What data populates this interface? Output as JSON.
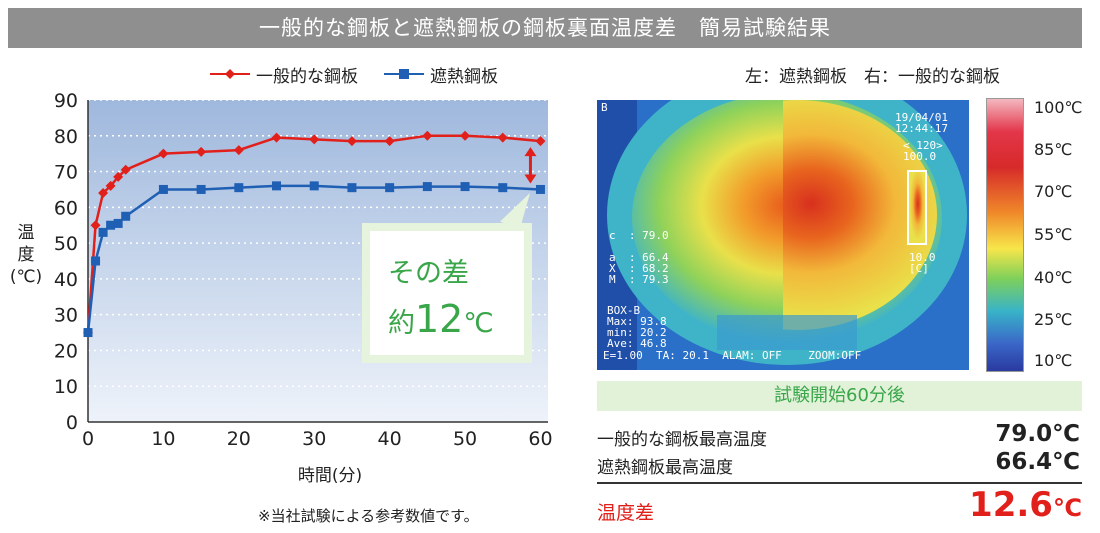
{
  "banner": {
    "title": "一般的な鋼板と遮熱鋼板の鋼板裏面温度差　簡易試験結果"
  },
  "colors": {
    "general": "#e2201b",
    "heat": "#1f5fb4",
    "accent_green": "#3aa64a",
    "plot_bg_top": "#9fb8dd"
  },
  "chart_data": {
    "type": "line",
    "xlabel": "時間(分)",
    "ylabel": "温度(℃)",
    "ylabel_lines": [
      "温",
      "度",
      "(℃)"
    ],
    "xlim": [
      0,
      61
    ],
    "ylim": [
      0,
      90
    ],
    "xticks": [
      0,
      10,
      20,
      30,
      40,
      50,
      60
    ],
    "yticks": [
      0,
      10,
      20,
      30,
      40,
      50,
      60,
      70,
      80,
      90
    ],
    "grid": "horizontal dotted",
    "legend_position": "top",
    "series": [
      {
        "name": "一般的な鋼板",
        "color": "#e2201b",
        "marker": "diamond",
        "x": [
          0,
          1,
          2,
          3,
          4,
          5,
          10,
          15,
          20,
          25,
          30,
          35,
          40,
          45,
          50,
          55,
          60
        ],
        "y": [
          25,
          55,
          64,
          66,
          68.5,
          70.5,
          75,
          75.5,
          76,
          79.5,
          79,
          78.5,
          78.5,
          80,
          80,
          79.5,
          78.5
        ]
      },
      {
        "name": "遮熱鋼板",
        "color": "#1f5fb4",
        "marker": "square",
        "x": [
          0,
          1,
          2,
          3,
          4,
          5,
          10,
          15,
          20,
          25,
          30,
          35,
          40,
          45,
          50,
          55,
          60
        ],
        "y": [
          25,
          45,
          53,
          55,
          55.5,
          57.5,
          65,
          65,
          65.5,
          66,
          66,
          65.5,
          65.5,
          65.8,
          65.8,
          65.5,
          65
        ]
      }
    ],
    "annotation": {
      "line1": "その差",
      "line2_prefix": "約",
      "line2_value": "12",
      "line2_unit": "℃"
    }
  },
  "note": "※当社試験による参考数値です。",
  "thermo": {
    "caption": "左：遮熱鋼板　右：一般的な鋼板",
    "scale_labels": [
      "100℃",
      "85℃",
      "70℃",
      "55℃",
      "40℃",
      "25℃",
      "10℃"
    ],
    "overlay": {
      "corner": "B",
      "datetime": "19/04/01\n12:44:17",
      "range": "< 120>\n100.0",
      "c_line": "c  : 79.0",
      "stats": "a  : 66.4\nX  : 68.2\nM  : 79.3",
      "low": "10.0\n[C]",
      "box": "BOX-B\nMax: 93.8\nmin: 20.2\nAve: 46.8",
      "footer": "E=1.00  TA: 20.1  ALAM: OFF    ZOOM:OFF"
    }
  },
  "results": {
    "header": "試験開始60分後",
    "general_label": "一般的な鋼板最高温度",
    "general_value": "79.0℃",
    "heat_label": "遮熱鋼板最高温度",
    "heat_value": "66.4℃",
    "diff_label": "温度差",
    "diff_value": "12.6",
    "diff_unit": "℃"
  }
}
